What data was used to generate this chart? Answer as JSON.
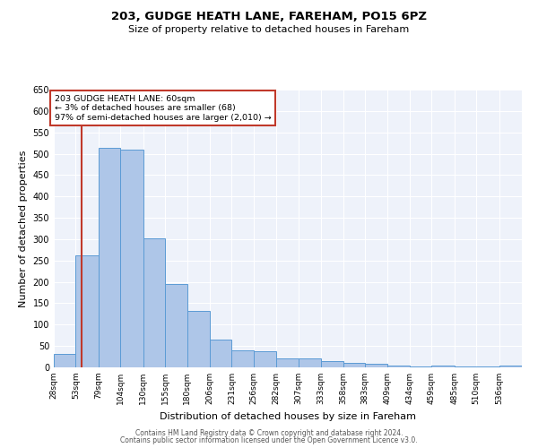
{
  "title1": "203, GUDGE HEATH LANE, FAREHAM, PO15 6PZ",
  "title2": "Size of property relative to detached houses in Fareham",
  "xlabel": "Distribution of detached houses by size in Fareham",
  "ylabel": "Number of detached properties",
  "footer1": "Contains HM Land Registry data © Crown copyright and database right 2024.",
  "footer2": "Contains public sector information licensed under the Open Government Licence v3.0.",
  "annotation_line1": "203 GUDGE HEATH LANE: 60sqm",
  "annotation_line2": "← 3% of detached houses are smaller (68)",
  "annotation_line3": "97% of semi-detached houses are larger (2,010) →",
  "bar_color": "#aec6e8",
  "bar_edge_color": "#5b9bd5",
  "vline_color": "#c0392b",
  "vline_x": 60,
  "plot_bg_color": "#eef2fa",
  "categories": [
    "28sqm",
    "53sqm",
    "79sqm",
    "104sqm",
    "130sqm",
    "155sqm",
    "180sqm",
    "206sqm",
    "231sqm",
    "256sqm",
    "282sqm",
    "307sqm",
    "333sqm",
    "358sqm",
    "383sqm",
    "409sqm",
    "434sqm",
    "459sqm",
    "485sqm",
    "510sqm",
    "536sqm"
  ],
  "bin_edges": [
    28,
    53,
    79,
    104,
    130,
    155,
    180,
    206,
    231,
    256,
    282,
    307,
    333,
    358,
    383,
    409,
    434,
    459,
    485,
    510,
    536,
    562
  ],
  "values": [
    32,
    263,
    513,
    510,
    302,
    196,
    132,
    65,
    40,
    37,
    22,
    22,
    15,
    10,
    8,
    5,
    2,
    5,
    2,
    2,
    5
  ],
  "ylim": [
    0,
    650
  ],
  "yticks": [
    0,
    50,
    100,
    150,
    200,
    250,
    300,
    350,
    400,
    450,
    500,
    550,
    600,
    650
  ]
}
